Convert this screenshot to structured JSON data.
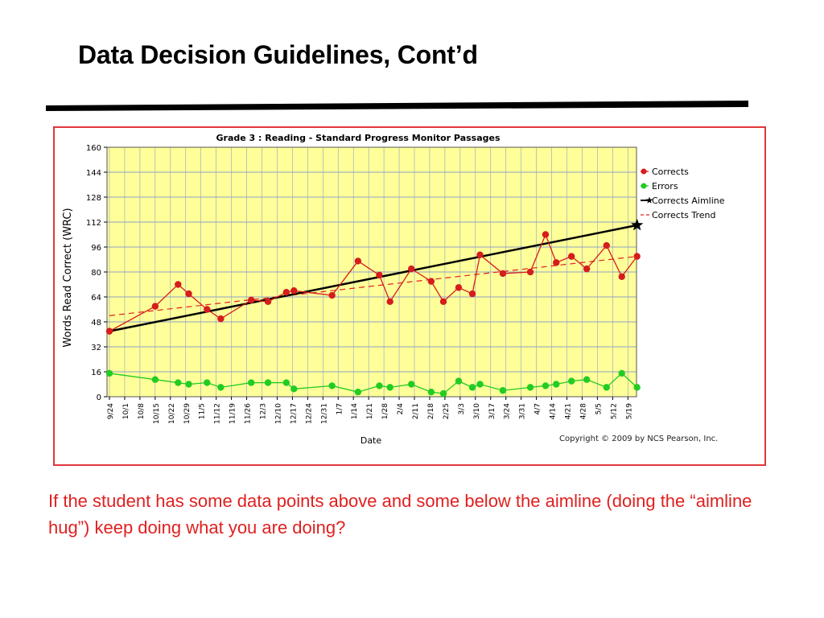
{
  "slide": {
    "title": "Data Decision Guidelines, Cont’d",
    "caption": "If the student has some data points above and some below the aimline (doing the “aimline hug”) keep doing what you are doing?"
  },
  "colors": {
    "plot_bg": "#ffff99",
    "frame": "#e0363b",
    "corrects": "#d51d1d",
    "errors": "#22cc22",
    "aimline": "#000000",
    "trend": "#e02020",
    "grid": "#8fa0c8",
    "caption": "#e02020"
  },
  "chart_data": {
    "type": "line",
    "title": "Grade 3 : Reading - Standard Progress Monitor Passages",
    "xlabel": "Date",
    "ylabel": "Words Read Correct (WRC)",
    "ylim": [
      0,
      160
    ],
    "yticks": [
      0,
      16,
      32,
      48,
      64,
      80,
      96,
      112,
      128,
      144,
      160
    ],
    "grid": true,
    "legend_position": "right",
    "copyright": "Copyright © 2009 by NCS Pearson, Inc.",
    "categories": [
      "9/24",
      "10/1",
      "10/8",
      "10/15",
      "10/22",
      "10/29",
      "11/5",
      "11/12",
      "11/19",
      "11/26",
      "12/3",
      "12/10",
      "12/17",
      "12/24",
      "12/31",
      "1/7",
      "1/14",
      "1/21",
      "1/28",
      "2/4",
      "2/11",
      "2/18",
      "2/25",
      "3/3",
      "3/10",
      "3/17",
      "3/24",
      "3/31",
      "4/7",
      "4/14",
      "4/21",
      "4/28",
      "5/5",
      "5/12",
      "5/19"
    ],
    "series": [
      {
        "name": "Corrects",
        "points": [
          {
            "x": 0,
            "y": 42
          },
          {
            "x": 3,
            "y": 58
          },
          {
            "x": 4.5,
            "y": 72
          },
          {
            "x": 5.2,
            "y": 66
          },
          {
            "x": 6.4,
            "y": 56
          },
          {
            "x": 7.3,
            "y": 50
          },
          {
            "x": 9.3,
            "y": 62
          },
          {
            "x": 10.4,
            "y": 61
          },
          {
            "x": 11.6,
            "y": 67
          },
          {
            "x": 12.1,
            "y": 68
          },
          {
            "x": 14.6,
            "y": 65
          },
          {
            "x": 16.3,
            "y": 87
          },
          {
            "x": 17.7,
            "y": 78
          },
          {
            "x": 18.4,
            "y": 61
          },
          {
            "x": 19.8,
            "y": 82
          },
          {
            "x": 21.1,
            "y": 74
          },
          {
            "x": 21.9,
            "y": 61
          },
          {
            "x": 22.9,
            "y": 70
          },
          {
            "x": 23.8,
            "y": 66
          },
          {
            "x": 24.3,
            "y": 91
          },
          {
            "x": 25.8,
            "y": 79
          },
          {
            "x": 27.6,
            "y": 80
          },
          {
            "x": 28.6,
            "y": 104
          },
          {
            "x": 29.3,
            "y": 86
          },
          {
            "x": 30.3,
            "y": 90
          },
          {
            "x": 31.3,
            "y": 82
          },
          {
            "x": 32.6,
            "y": 97
          },
          {
            "x": 33.6,
            "y": 77
          },
          {
            "x": 34.6,
            "y": 90
          }
        ]
      },
      {
        "name": "Errors",
        "points": [
          {
            "x": 0,
            "y": 15
          },
          {
            "x": 3,
            "y": 11
          },
          {
            "x": 4.5,
            "y": 9
          },
          {
            "x": 5.2,
            "y": 8
          },
          {
            "x": 6.4,
            "y": 9
          },
          {
            "x": 7.3,
            "y": 6
          },
          {
            "x": 9.3,
            "y": 9
          },
          {
            "x": 10.4,
            "y": 9
          },
          {
            "x": 11.6,
            "y": 9
          },
          {
            "x": 12.1,
            "y": 5
          },
          {
            "x": 14.6,
            "y": 7
          },
          {
            "x": 16.3,
            "y": 3
          },
          {
            "x": 17.7,
            "y": 7
          },
          {
            "x": 18.4,
            "y": 6
          },
          {
            "x": 19.8,
            "y": 8
          },
          {
            "x": 21.1,
            "y": 3
          },
          {
            "x": 21.9,
            "y": 2
          },
          {
            "x": 22.9,
            "y": 10
          },
          {
            "x": 23.8,
            "y": 6
          },
          {
            "x": 24.3,
            "y": 8
          },
          {
            "x": 25.8,
            "y": 4
          },
          {
            "x": 27.6,
            "y": 6
          },
          {
            "x": 28.6,
            "y": 7
          },
          {
            "x": 29.3,
            "y": 8
          },
          {
            "x": 30.3,
            "y": 10
          },
          {
            "x": 31.3,
            "y": 11
          },
          {
            "x": 32.6,
            "y": 6
          },
          {
            "x": 33.6,
            "y": 15
          },
          {
            "x": 34.6,
            "y": 6
          }
        ]
      },
      {
        "name": "Corrects Aimline",
        "points": [
          {
            "x": 0,
            "y": 42
          },
          {
            "x": 34.6,
            "y": 110
          }
        ]
      },
      {
        "name": "Corrects Trend",
        "points": [
          {
            "x": 0,
            "y": 52
          },
          {
            "x": 34.6,
            "y": 90
          }
        ]
      }
    ]
  }
}
